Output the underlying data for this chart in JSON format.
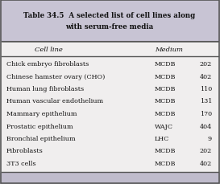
{
  "title_line1": "Table 34.5  A selected list of cell lines along",
  "title_line2": "with serum-free media",
  "col_headers": [
    "Cell line",
    "Medium"
  ],
  "rows": [
    [
      "Chick embryo fibroblasts",
      "MCDB",
      "202"
    ],
    [
      "Chinese hamster ovary (CHO)",
      "MCDB",
      "402"
    ],
    [
      "Human lung fibroblasts",
      "MCDB",
      "110"
    ],
    [
      "Human vascular endothelium",
      "MCDB",
      "131"
    ],
    [
      "Mammary epithelium",
      "MCDB",
      "170"
    ],
    [
      "Prostatic epithelium",
      "WAJC",
      "404"
    ],
    [
      "Bronchial epithelium",
      "LHC",
      "9"
    ],
    [
      "Fibroblasts",
      "MCDB",
      "202"
    ],
    [
      "3T3 cells",
      "MCDB",
      "402"
    ]
  ],
  "title_bg": "#c8c4d4",
  "table_bg": "#f0eeee",
  "bottom_bg": "#c0bccc",
  "border_color": "#555555",
  "text_color": "#111111",
  "title_color": "#111111",
  "title_fontsize": 6.2,
  "header_fontsize": 6.0,
  "row_fontsize": 5.8
}
